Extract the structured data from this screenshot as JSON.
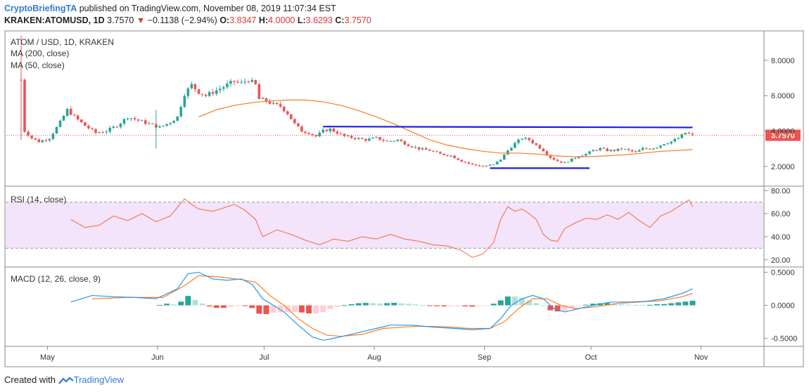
{
  "header": {
    "publisher": "CryptoBriefingTA",
    "published_text": "published on TradingView.com, November 08, 2019 11:07:34 EST",
    "symbol": "KRAKEN:ATOMUSD, 1D",
    "last": "3.7570",
    "change_arrow": "▼",
    "change": "−0.1138 (−2.94%)",
    "o_label": "O:",
    "o": "3.8347",
    "h_label": "H:",
    "h": "4.0000",
    "l_label": "L:",
    "l": "3.6293",
    "c_label": "C:",
    "c": "3.7570"
  },
  "legend": {
    "title": "ATOM / USD, 1D, KRAKEN",
    "ma200": "MA (200, close)",
    "ma50": "MA (50, close)",
    "rsi": "RSI (14, close)",
    "macd": "MACD (12, 26, close, 9)"
  },
  "footer": {
    "created_with": "Created with",
    "brand": "TradingView"
  },
  "colors": {
    "up": "#26a69a",
    "down": "#ef5350",
    "ma": "#f57c23",
    "line": "#1d1de0",
    "rsi": "#f26b3a",
    "rsi_band": "#f3e3fb",
    "macd": "#2196f3",
    "signal": "#ff7d1f",
    "price_badge": "#ef5350"
  },
  "chart_data": [
    {
      "type": "candlestick",
      "title": "ATOM / USD, 1D, KRAKEN",
      "x_ticks": [
        "May",
        "Jun",
        "Jul",
        "Aug",
        "Sep",
        "Oct",
        "Nov"
      ],
      "y_ticks": [
        "2.0000",
        "4.0000",
        "6.0000",
        "8.0000"
      ],
      "ylim": [
        1.0,
        9.5
      ],
      "last_price_label": "3.7570",
      "close_path": [
        {
          "d": 0,
          "c": 6.9
        },
        {
          "d": 1,
          "c": 4.0
        },
        {
          "d": 3,
          "c": 3.6
        },
        {
          "d": 5,
          "c": 3.4
        },
        {
          "d": 8,
          "c": 3.6
        },
        {
          "d": 11,
          "c": 4.5
        },
        {
          "d": 13,
          "c": 5.2
        },
        {
          "d": 15,
          "c": 4.8
        },
        {
          "d": 18,
          "c": 4.3
        },
        {
          "d": 21,
          "c": 3.9
        },
        {
          "d": 24,
          "c": 4.0
        },
        {
          "d": 27,
          "c": 4.3
        },
        {
          "d": 30,
          "c": 4.8
        },
        {
          "d": 33,
          "c": 4.6
        },
        {
          "d": 36,
          "c": 4.4
        },
        {
          "d": 39,
          "c": 4.2
        },
        {
          "d": 42,
          "c": 4.5
        },
        {
          "d": 44,
          "c": 4.8
        },
        {
          "d": 46,
          "c": 6.1
        },
        {
          "d": 48,
          "c": 6.6
        },
        {
          "d": 50,
          "c": 6.2
        },
        {
          "d": 52,
          "c": 6.0
        },
        {
          "d": 54,
          "c": 6.2
        },
        {
          "d": 56,
          "c": 6.4
        },
        {
          "d": 58,
          "c": 6.6
        },
        {
          "d": 60,
          "c": 6.8
        },
        {
          "d": 62,
          "c": 6.7
        },
        {
          "d": 64,
          "c": 6.9
        },
        {
          "d": 66,
          "c": 6.6
        },
        {
          "d": 67,
          "c": 5.8
        },
        {
          "d": 69,
          "c": 5.7
        },
        {
          "d": 71,
          "c": 5.5
        },
        {
          "d": 73,
          "c": 5.4
        },
        {
          "d": 75,
          "c": 5.0
        },
        {
          "d": 77,
          "c": 4.4
        },
        {
          "d": 79,
          "c": 4.0
        },
        {
          "d": 81,
          "c": 3.9
        },
        {
          "d": 83,
          "c": 3.7
        },
        {
          "d": 85,
          "c": 4.0
        },
        {
          "d": 87,
          "c": 4.1
        },
        {
          "d": 89,
          "c": 3.9
        },
        {
          "d": 91,
          "c": 3.7
        },
        {
          "d": 94,
          "c": 3.6
        },
        {
          "d": 97,
          "c": 3.5
        },
        {
          "d": 100,
          "c": 3.6
        },
        {
          "d": 103,
          "c": 3.4
        },
        {
          "d": 106,
          "c": 3.5
        },
        {
          "d": 109,
          "c": 3.2
        },
        {
          "d": 112,
          "c": 3.0
        },
        {
          "d": 115,
          "c": 2.9
        },
        {
          "d": 118,
          "c": 2.7
        },
        {
          "d": 121,
          "c": 2.6
        },
        {
          "d": 124,
          "c": 2.3
        },
        {
          "d": 127,
          "c": 2.1
        },
        {
          "d": 130,
          "c": 2.0
        },
        {
          "d": 133,
          "c": 2.1
        },
        {
          "d": 135,
          "c": 2.4
        },
        {
          "d": 137,
          "c": 2.9
        },
        {
          "d": 139,
          "c": 3.3
        },
        {
          "d": 141,
          "c": 3.6
        },
        {
          "d": 143,
          "c": 3.5
        },
        {
          "d": 145,
          "c": 3.2
        },
        {
          "d": 147,
          "c": 2.9
        },
        {
          "d": 149,
          "c": 2.5
        },
        {
          "d": 151,
          "c": 2.3
        },
        {
          "d": 153,
          "c": 2.2
        },
        {
          "d": 155,
          "c": 2.4
        },
        {
          "d": 157,
          "c": 2.6
        },
        {
          "d": 159,
          "c": 2.7
        },
        {
          "d": 161,
          "c": 2.9
        },
        {
          "d": 163,
          "c": 3.0
        },
        {
          "d": 165,
          "c": 2.9
        },
        {
          "d": 167,
          "c": 2.9
        },
        {
          "d": 169,
          "c": 3.0
        },
        {
          "d": 171,
          "c": 2.9
        },
        {
          "d": 173,
          "c": 2.8
        },
        {
          "d": 175,
          "c": 3.0
        },
        {
          "d": 177,
          "c": 3.0
        },
        {
          "d": 179,
          "c": 3.1
        },
        {
          "d": 181,
          "c": 3.3
        },
        {
          "d": 183,
          "c": 3.4
        },
        {
          "d": 185,
          "c": 3.6
        },
        {
          "d": 187,
          "c": 3.9
        },
        {
          "d": 189,
          "c": 3.76
        }
      ],
      "ma50": [
        {
          "d": 50,
          "c": 4.8
        },
        {
          "d": 55,
          "c": 5.2
        },
        {
          "d": 60,
          "c": 5.45
        },
        {
          "d": 65,
          "c": 5.6
        },
        {
          "d": 70,
          "c": 5.7
        },
        {
          "d": 75,
          "c": 5.75
        },
        {
          "d": 80,
          "c": 5.75
        },
        {
          "d": 85,
          "c": 5.65
        },
        {
          "d": 90,
          "c": 5.45
        },
        {
          "d": 95,
          "c": 5.15
        },
        {
          "d": 100,
          "c": 4.8
        },
        {
          "d": 105,
          "c": 4.4
        },
        {
          "d": 110,
          "c": 3.95
        },
        {
          "d": 115,
          "c": 3.5
        },
        {
          "d": 120,
          "c": 3.2
        },
        {
          "d": 125,
          "c": 3.0
        },
        {
          "d": 130,
          "c": 2.85
        },
        {
          "d": 135,
          "c": 2.75
        },
        {
          "d": 140,
          "c": 2.75
        },
        {
          "d": 145,
          "c": 2.7
        },
        {
          "d": 150,
          "c": 2.6
        },
        {
          "d": 155,
          "c": 2.55
        },
        {
          "d": 160,
          "c": 2.55
        },
        {
          "d": 165,
          "c": 2.6
        },
        {
          "d": 170,
          "c": 2.65
        },
        {
          "d": 175,
          "c": 2.75
        },
        {
          "d": 180,
          "c": 2.85
        },
        {
          "d": 185,
          "c": 2.9
        },
        {
          "d": 189,
          "c": 2.95
        }
      ],
      "resistance": {
        "from_d": 85,
        "to_d": 189,
        "from_y": 4.25,
        "to_y": 4.2
      },
      "support": {
        "from_d": 132,
        "to_d": 160,
        "y": 1.9
      }
    },
    {
      "type": "line",
      "title": "RSI (14, close)",
      "y_ticks": [
        "20.00",
        "40.00",
        "60.00",
        "80.00"
      ],
      "ylim": [
        15,
        82
      ],
      "band": [
        30,
        70
      ],
      "values": [
        {
          "d": 14,
          "v": 55
        },
        {
          "d": 18,
          "v": 48
        },
        {
          "d": 22,
          "v": 50
        },
        {
          "d": 26,
          "v": 58
        },
        {
          "d": 30,
          "v": 54
        },
        {
          "d": 34,
          "v": 60
        },
        {
          "d": 38,
          "v": 53
        },
        {
          "d": 42,
          "v": 58
        },
        {
          "d": 46,
          "v": 73
        },
        {
          "d": 48,
          "v": 68
        },
        {
          "d": 50,
          "v": 64
        },
        {
          "d": 54,
          "v": 62
        },
        {
          "d": 58,
          "v": 66
        },
        {
          "d": 60,
          "v": 68
        },
        {
          "d": 63,
          "v": 63
        },
        {
          "d": 66,
          "v": 55
        },
        {
          "d": 68,
          "v": 40
        },
        {
          "d": 72,
          "v": 46
        },
        {
          "d": 76,
          "v": 42
        },
        {
          "d": 80,
          "v": 37
        },
        {
          "d": 84,
          "v": 33
        },
        {
          "d": 88,
          "v": 38
        },
        {
          "d": 92,
          "v": 36
        },
        {
          "d": 96,
          "v": 40
        },
        {
          "d": 100,
          "v": 38
        },
        {
          "d": 104,
          "v": 42
        },
        {
          "d": 108,
          "v": 38
        },
        {
          "d": 112,
          "v": 36
        },
        {
          "d": 116,
          "v": 33
        },
        {
          "d": 120,
          "v": 32
        },
        {
          "d": 124,
          "v": 28
        },
        {
          "d": 127,
          "v": 22
        },
        {
          "d": 130,
          "v": 25
        },
        {
          "d": 133,
          "v": 35
        },
        {
          "d": 135,
          "v": 55
        },
        {
          "d": 137,
          "v": 66
        },
        {
          "d": 139,
          "v": 62
        },
        {
          "d": 141,
          "v": 64
        },
        {
          "d": 143,
          "v": 60
        },
        {
          "d": 145,
          "v": 55
        },
        {
          "d": 147,
          "v": 42
        },
        {
          "d": 149,
          "v": 37
        },
        {
          "d": 151,
          "v": 36
        },
        {
          "d": 153,
          "v": 47
        },
        {
          "d": 156,
          "v": 52
        },
        {
          "d": 159,
          "v": 56
        },
        {
          "d": 162,
          "v": 55
        },
        {
          "d": 165,
          "v": 59
        },
        {
          "d": 168,
          "v": 55
        },
        {
          "d": 171,
          "v": 61
        },
        {
          "d": 174,
          "v": 54
        },
        {
          "d": 177,
          "v": 48
        },
        {
          "d": 180,
          "v": 58
        },
        {
          "d": 183,
          "v": 62
        },
        {
          "d": 186,
          "v": 68
        },
        {
          "d": 188,
          "v": 72
        },
        {
          "d": 189,
          "v": 66
        }
      ]
    },
    {
      "type": "macd",
      "title": "MACD (12, 26, close, 9)",
      "y_ticks": [
        "-0.5000",
        "0.0000",
        "0.5000"
      ],
      "ylim": [
        -0.6,
        0.55
      ],
      "macd": [
        {
          "d": 14,
          "v": 0.05
        },
        {
          "d": 20,
          "v": 0.15
        },
        {
          "d": 26,
          "v": 0.13
        },
        {
          "d": 32,
          "v": 0.12
        },
        {
          "d": 38,
          "v": 0.1
        },
        {
          "d": 44,
          "v": 0.25
        },
        {
          "d": 47,
          "v": 0.48
        },
        {
          "d": 50,
          "v": 0.5
        },
        {
          "d": 54,
          "v": 0.4
        },
        {
          "d": 58,
          "v": 0.38
        },
        {
          "d": 62,
          "v": 0.4
        },
        {
          "d": 65,
          "v": 0.32
        },
        {
          "d": 68,
          "v": 0.1
        },
        {
          "d": 71,
          "v": 0.0
        },
        {
          "d": 74,
          "v": -0.1
        },
        {
          "d": 78,
          "v": -0.3
        },
        {
          "d": 82,
          "v": -0.48
        },
        {
          "d": 85,
          "v": -0.53
        },
        {
          "d": 88,
          "v": -0.5
        },
        {
          "d": 92,
          "v": -0.45
        },
        {
          "d": 96,
          "v": -0.4
        },
        {
          "d": 100,
          "v": -0.35
        },
        {
          "d": 104,
          "v": -0.3
        },
        {
          "d": 110,
          "v": -0.3
        },
        {
          "d": 116,
          "v": -0.33
        },
        {
          "d": 122,
          "v": -0.35
        },
        {
          "d": 127,
          "v": -0.37
        },
        {
          "d": 132,
          "v": -0.35
        },
        {
          "d": 135,
          "v": -0.2
        },
        {
          "d": 138,
          "v": 0.0
        },
        {
          "d": 141,
          "v": 0.1
        },
        {
          "d": 144,
          "v": 0.15
        },
        {
          "d": 147,
          "v": 0.1
        },
        {
          "d": 150,
          "v": -0.05
        },
        {
          "d": 153,
          "v": -0.1
        },
        {
          "d": 157,
          "v": -0.05
        },
        {
          "d": 161,
          "v": 0.0
        },
        {
          "d": 166,
          "v": 0.05
        },
        {
          "d": 171,
          "v": 0.05
        },
        {
          "d": 176,
          "v": 0.06
        },
        {
          "d": 181,
          "v": 0.1
        },
        {
          "d": 186,
          "v": 0.18
        },
        {
          "d": 189,
          "v": 0.25
        }
      ],
      "signal": [
        {
          "d": 20,
          "v": 0.1
        },
        {
          "d": 30,
          "v": 0.12
        },
        {
          "d": 40,
          "v": 0.12
        },
        {
          "d": 46,
          "v": 0.3
        },
        {
          "d": 50,
          "v": 0.45
        },
        {
          "d": 56,
          "v": 0.43
        },
        {
          "d": 62,
          "v": 0.39
        },
        {
          "d": 66,
          "v": 0.35
        },
        {
          "d": 70,
          "v": 0.15
        },
        {
          "d": 74,
          "v": 0.0
        },
        {
          "d": 78,
          "v": -0.2
        },
        {
          "d": 82,
          "v": -0.35
        },
        {
          "d": 86,
          "v": -0.45
        },
        {
          "d": 90,
          "v": -0.47
        },
        {
          "d": 96,
          "v": -0.44
        },
        {
          "d": 102,
          "v": -0.35
        },
        {
          "d": 110,
          "v": -0.32
        },
        {
          "d": 118,
          "v": -0.32
        },
        {
          "d": 126,
          "v": -0.35
        },
        {
          "d": 132,
          "v": -0.35
        },
        {
          "d": 136,
          "v": -0.25
        },
        {
          "d": 140,
          "v": -0.05
        },
        {
          "d": 144,
          "v": 0.1
        },
        {
          "d": 148,
          "v": 0.1
        },
        {
          "d": 152,
          "v": 0.0
        },
        {
          "d": 156,
          "v": -0.05
        },
        {
          "d": 162,
          "v": -0.02
        },
        {
          "d": 168,
          "v": 0.03
        },
        {
          "d": 174,
          "v": 0.05
        },
        {
          "d": 180,
          "v": 0.07
        },
        {
          "d": 186,
          "v": 0.13
        },
        {
          "d": 189,
          "v": 0.18
        }
      ]
    }
  ]
}
